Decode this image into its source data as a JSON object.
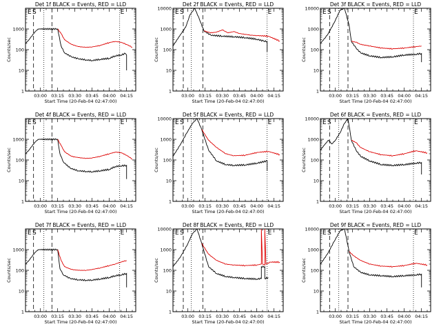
{
  "chart_data": [
    {
      "type": "line",
      "title": "Det 1f BLACK = Events, RED = LLD",
      "xlabel": "Start Time (20-Feb-04 02:47:00)",
      "ylabel": "Counts/sec",
      "yscale": "log",
      "ylim": [
        1,
        10000
      ],
      "xlim": [
        "02:47",
        "04:23"
      ],
      "xticks": [
        "03:00",
        "03:15",
        "03:30",
        "03:45",
        "04:00",
        "04:15"
      ],
      "yticks": [
        "1",
        "10",
        "100",
        "1000"
      ],
      "colors": {
        "events": "#000000",
        "lld": "#dd0000"
      },
      "series": [
        {
          "name": "BLACK = Events",
          "color": "#000000",
          "x": [
            "02:47",
            "02:50",
            "02:55",
            "02:58",
            "03:15",
            "03:18",
            "03:21",
            "03:27",
            "03:33",
            "03:40",
            "03:45",
            "03:52",
            "04:00",
            "04:05",
            "04:10",
            "04:14",
            "04:15",
            "04:15"
          ],
          "y": [
            200,
            300,
            700,
            1000,
            1000,
            150,
            70,
            45,
            36,
            32,
            30,
            34,
            38,
            50,
            55,
            65,
            55,
            10
          ]
        },
        {
          "name": "RED = LLD",
          "color": "#dd0000",
          "x": [
            "03:15",
            "03:18",
            "03:21",
            "03:27",
            "03:33",
            "03:40",
            "03:45",
            "03:52",
            "04:00",
            "04:05",
            "04:10",
            "04:15",
            "04:20"
          ],
          "y": [
            1000,
            600,
            300,
            180,
            140,
            130,
            135,
            160,
            220,
            250,
            230,
            180,
            130
          ]
        }
      ],
      "annotations": [
        "E",
        "S",
        "E"
      ]
    },
    {
      "type": "line",
      "title": "Det 2f BLACK = Events, RED = LLD",
      "xlabel": "Start Time (20-Feb-04 02:47:00)",
      "ylabel": "Counts/sec",
      "yscale": "log",
      "ylim": [
        1,
        10000
      ],
      "xlim": [
        "02:47",
        "04:23"
      ],
      "xticks": [
        "03:00",
        "03:15",
        "03:30",
        "03:45",
        "04:00",
        "04:15"
      ],
      "yticks": [
        "1",
        "10",
        "100",
        "1000",
        "10000"
      ],
      "colors": {
        "events": "#000000",
        "lld": "#dd0000"
      },
      "series": [
        {
          "name": "BLACK = Events",
          "color": "#000000",
          "x": [
            "02:47",
            "02:52",
            "02:58",
            "03:02",
            "03:06",
            "03:10",
            "03:14",
            "03:20",
            "03:30",
            "03:40",
            "03:50",
            "04:00",
            "04:06",
            "04:09",
            "04:09"
          ],
          "y": [
            150,
            400,
            1200,
            5000,
            10000,
            3000,
            800,
            500,
            450,
            420,
            380,
            320,
            260,
            250,
            80
          ]
        },
        {
          "name": "RED = LLD",
          "color": "#dd0000",
          "x": [
            "03:14",
            "03:20",
            "03:25",
            "03:30",
            "03:35",
            "03:40",
            "03:45",
            "03:50",
            "03:55",
            "04:00",
            "04:10",
            "04:20"
          ],
          "y": [
            800,
            650,
            700,
            900,
            650,
            750,
            600,
            550,
            500,
            480,
            450,
            260
          ]
        }
      ],
      "annotations": [
        "E",
        "S",
        "E"
      ]
    },
    {
      "type": "line",
      "title": "Det 3f BLACK = Events, RED = LLD",
      "xlabel": "Start Time (20-Feb-04 02:47:00)",
      "ylabel": "Counts/sec",
      "yscale": "log",
      "ylim": [
        1,
        10000
      ],
      "xlim": [
        "02:47",
        "04:23"
      ],
      "xticks": [
        "03:00",
        "03:15",
        "03:30",
        "03:45",
        "04:00",
        "04:15"
      ],
      "yticks": [
        "1",
        "10",
        "100",
        "1000",
        "10000"
      ],
      "colors": {
        "events": "#000000",
        "lld": "#dd0000"
      },
      "series": [
        {
          "name": "BLACK = Events",
          "color": "#000000",
          "x": [
            "02:47",
            "02:53",
            "02:59",
            "03:04",
            "03:08",
            "03:12",
            "03:14",
            "03:18",
            "03:22",
            "03:30",
            "03:40",
            "03:50",
            "04:00",
            "04:10",
            "04:15",
            "04:15"
          ],
          "y": [
            200,
            500,
            2000,
            8000,
            10000,
            1500,
            250,
            120,
            70,
            50,
            42,
            45,
            55,
            60,
            65,
            25
          ]
        },
        {
          "name": "RED = LLD",
          "color": "#dd0000",
          "x": [
            "03:14",
            "03:18",
            "03:22",
            "03:30",
            "03:40",
            "03:50",
            "04:00",
            "04:10",
            "04:15"
          ],
          "y": [
            250,
            230,
            180,
            150,
            120,
            110,
            120,
            140,
            150
          ]
        }
      ],
      "annotations": [
        "E",
        "S",
        "E"
      ]
    },
    {
      "type": "line",
      "title": "Det 4f BLACK = Events, RED = LLD",
      "xlabel": "Start Time (20-Feb-04 02:47:00)",
      "ylabel": "Counts/sec",
      "yscale": "log",
      "ylim": [
        1,
        10000
      ],
      "xlim": [
        "02:47",
        "04:23"
      ],
      "xticks": [
        "03:00",
        "03:15",
        "03:30",
        "03:45",
        "04:00",
        "04:15"
      ],
      "yticks": [
        "1",
        "10",
        "100",
        "1000"
      ],
      "colors": {
        "events": "#000000",
        "lld": "#dd0000"
      },
      "series": [
        {
          "name": "BLACK = Events",
          "color": "#000000",
          "x": [
            "02:47",
            "02:50",
            "02:55",
            "02:58",
            "03:15",
            "03:17",
            "03:20",
            "03:26",
            "03:33",
            "03:40",
            "03:45",
            "03:52",
            "04:00",
            "04:05",
            "04:10",
            "04:15",
            "04:15"
          ],
          "y": [
            200,
            300,
            700,
            1000,
            1000,
            200,
            80,
            40,
            30,
            28,
            27,
            30,
            35,
            48,
            52,
            55,
            12
          ]
        },
        {
          "name": "RED = LLD",
          "color": "#dd0000",
          "x": [
            "03:15",
            "03:18",
            "03:21",
            "03:27",
            "03:33",
            "03:40",
            "03:45",
            "03:52",
            "04:00",
            "04:05",
            "04:10",
            "04:15",
            "04:20"
          ],
          "y": [
            1000,
            500,
            250,
            150,
            130,
            120,
            125,
            150,
            200,
            240,
            230,
            170,
            110
          ]
        }
      ],
      "annotations": [
        "E",
        "S",
        "E"
      ]
    },
    {
      "type": "line",
      "title": "Det 5f BLACK = Events, RED = LLD",
      "xlabel": "Start Time (20-Feb-04 02:47:00)",
      "ylabel": "Counts/sec",
      "yscale": "log",
      "ylim": [
        1,
        10000
      ],
      "xlim": [
        "02:47",
        "04:23"
      ],
      "xticks": [
        "03:00",
        "03:15",
        "03:30",
        "03:45",
        "04:00",
        "04:15"
      ],
      "yticks": [
        "1",
        "10",
        "100",
        "1000",
        "10000"
      ],
      "colors": {
        "events": "#000000",
        "lld": "#dd0000"
      },
      "series": [
        {
          "name": "BLACK = Events",
          "color": "#000000",
          "x": [
            "02:47",
            "02:53",
            "02:59",
            "03:04",
            "03:08",
            "03:12",
            "03:18",
            "03:25",
            "03:33",
            "03:40",
            "03:50",
            "04:00",
            "04:09",
            "04:09"
          ],
          "y": [
            150,
            500,
            2000,
            6000,
            10000,
            3000,
            300,
            90,
            60,
            55,
            58,
            70,
            90,
            30
          ]
        },
        {
          "name": "RED = LLD",
          "color": "#dd0000",
          "x": [
            "03:12",
            "03:18",
            "03:25",
            "03:33",
            "03:40",
            "03:50",
            "04:00",
            "04:10",
            "04:20"
          ],
          "y": [
            3000,
            900,
            400,
            200,
            160,
            170,
            230,
            260,
            180
          ]
        }
      ],
      "annotations": [
        "E",
        "S",
        "E"
      ]
    },
    {
      "type": "line",
      "title": "Det 6f BLACK = Events, RED = LLD",
      "xlabel": "Start Time (20-Feb-04 02:47:00)",
      "ylabel": "Counts/sec",
      "yscale": "log",
      "ylim": [
        1,
        10000
      ],
      "xlim": [
        "02:47",
        "04:23"
      ],
      "xticks": [
        "03:00",
        "03:15",
        "03:30",
        "03:45",
        "04:00",
        "04:15"
      ],
      "yticks": [
        "1",
        "10",
        "100",
        "1000",
        "10000"
      ],
      "colors": {
        "events": "#000000",
        "lld": "#dd0000"
      },
      "series": [
        {
          "name": "BLACK = Events",
          "color": "#000000",
          "x": [
            "02:47",
            "02:50",
            "02:54",
            "02:57",
            "03:00",
            "03:04",
            "03:08",
            "03:11",
            "03:14",
            "03:18",
            "03:22",
            "03:30",
            "03:40",
            "03:50",
            "04:00",
            "04:10",
            "04:15",
            "04:15"
          ],
          "y": [
            300,
            500,
            900,
            600,
            900,
            2000,
            6000,
            10000,
            900,
            300,
            150,
            90,
            60,
            55,
            60,
            70,
            75,
            20
          ]
        },
        {
          "name": "RED = LLD",
          "color": "#dd0000",
          "x": [
            "03:14",
            "03:18",
            "03:22",
            "03:30",
            "03:40",
            "03:50",
            "04:00",
            "04:10",
            "04:20"
          ],
          "y": [
            900,
            700,
            400,
            250,
            180,
            160,
            200,
            280,
            220
          ]
        }
      ],
      "annotations": [
        "E",
        "S",
        "E"
      ]
    },
    {
      "type": "line",
      "title": "Det 7f BLACK = Events, RED = LLD",
      "xlabel": "Start Time (20-Feb-04 02:47:00)",
      "ylabel": "Counts/sec",
      "yscale": "log",
      "ylim": [
        1,
        10000
      ],
      "xlim": [
        "02:47",
        "04:23"
      ],
      "xticks": [
        "03:00",
        "03:15",
        "03:30",
        "03:45",
        "04:00",
        "04:15"
      ],
      "yticks": [
        "1",
        "10",
        "100",
        "1000"
      ],
      "colors": {
        "events": "#000000",
        "lld": "#dd0000"
      },
      "series": [
        {
          "name": "BLACK = Events",
          "color": "#000000",
          "x": [
            "02:47",
            "02:50",
            "02:55",
            "02:58",
            "03:15",
            "03:17",
            "03:20",
            "03:26",
            "03:33",
            "03:40",
            "03:45",
            "03:52",
            "04:00",
            "04:05",
            "04:10",
            "04:15",
            "04:15"
          ],
          "y": [
            200,
            300,
            700,
            1000,
            1000,
            120,
            60,
            40,
            35,
            33,
            34,
            38,
            45,
            55,
            60,
            70,
            15
          ]
        },
        {
          "name": "RED = LLD",
          "color": "#dd0000",
          "x": [
            "03:15",
            "03:18",
            "03:21",
            "03:27",
            "03:33",
            "03:40",
            "03:45",
            "03:52",
            "04:00",
            "04:05",
            "04:10",
            "04:15"
          ],
          "y": [
            1000,
            300,
            150,
            110,
            100,
            100,
            110,
            130,
            170,
            200,
            250,
            300
          ]
        }
      ],
      "annotations": [
        "E",
        "S",
        "E"
      ]
    },
    {
      "type": "line",
      "title": "Det 8f BLACK = Events, RED = LLD",
      "xlabel": "Start Time (20-Feb-04 02:47:00)",
      "ylabel": "Counts/sec",
      "yscale": "log",
      "ylim": [
        1,
        10000
      ],
      "xlim": [
        "02:47",
        "04:23"
      ],
      "xticks": [
        "03:00",
        "03:15",
        "03:30",
        "03:45",
        "04:00",
        "04:15"
      ],
      "yticks": [
        "1",
        "10",
        "100",
        "1000",
        "10000"
      ],
      "colors": {
        "events": "#000000",
        "lld": "#dd0000"
      },
      "series": [
        {
          "name": "BLACK = Events",
          "color": "#000000",
          "x": [
            "02:47",
            "02:53",
            "02:59",
            "03:04",
            "03:08",
            "03:12",
            "03:18",
            "03:25",
            "03:33",
            "03:40",
            "03:50",
            "04:00",
            "04:04",
            "04:04",
            "04:07",
            "04:07",
            "04:10"
          ],
          "y": [
            150,
            400,
            1500,
            6000,
            10000,
            2000,
            150,
            70,
            50,
            45,
            40,
            38,
            40,
            150,
            150,
            40,
            45
          ]
        },
        {
          "name": "RED = LLD",
          "color": "#dd0000",
          "x": [
            "03:12",
            "03:18",
            "03:25",
            "03:33",
            "03:40",
            "03:50",
            "04:00",
            "04:04",
            "04:04",
            "04:05",
            "04:07",
            "04:07",
            "04:08",
            "04:12",
            "04:20"
          ],
          "y": [
            2000,
            600,
            300,
            200,
            180,
            170,
            180,
            200,
            10000,
            200,
            180,
            10000,
            200,
            250,
            250
          ]
        }
      ],
      "annotations": [
        "E",
        "S",
        "E"
      ]
    },
    {
      "type": "line",
      "title": "Det 9f BLACK = Events, RED = LLD",
      "xlabel": "Start Time (20-Feb-04 02:47:00)",
      "ylabel": "Counts/sec",
      "yscale": "log",
      "ylim": [
        1,
        10000
      ],
      "xlim": [
        "02:47",
        "04:23"
      ],
      "xticks": [
        "03:00",
        "03:15",
        "03:30",
        "03:45",
        "04:00",
        "04:15"
      ],
      "yticks": [
        "1",
        "10",
        "100",
        "1000",
        "10000"
      ],
      "colors": {
        "events": "#000000",
        "lld": "#dd0000"
      },
      "series": [
        {
          "name": "BLACK = Events",
          "color": "#000000",
          "x": [
            "02:47",
            "02:53",
            "02:59",
            "03:04",
            "03:08",
            "03:12",
            "03:16",
            "03:22",
            "03:30",
            "03:40",
            "03:50",
            "04:00",
            "04:10",
            "04:15",
            "04:15"
          ],
          "y": [
            200,
            600,
            2500,
            8000,
            10000,
            800,
            150,
            80,
            60,
            55,
            50,
            55,
            60,
            65,
            15
          ]
        },
        {
          "name": "RED = LLD",
          "color": "#dd0000",
          "x": [
            "03:12",
            "03:16",
            "03:22",
            "03:30",
            "03:40",
            "03:50",
            "04:00",
            "04:10",
            "04:20"
          ],
          "y": [
            800,
            500,
            300,
            200,
            160,
            150,
            170,
            220,
            180
          ]
        }
      ],
      "annotations": [
        "E",
        "S",
        "E"
      ]
    }
  ]
}
